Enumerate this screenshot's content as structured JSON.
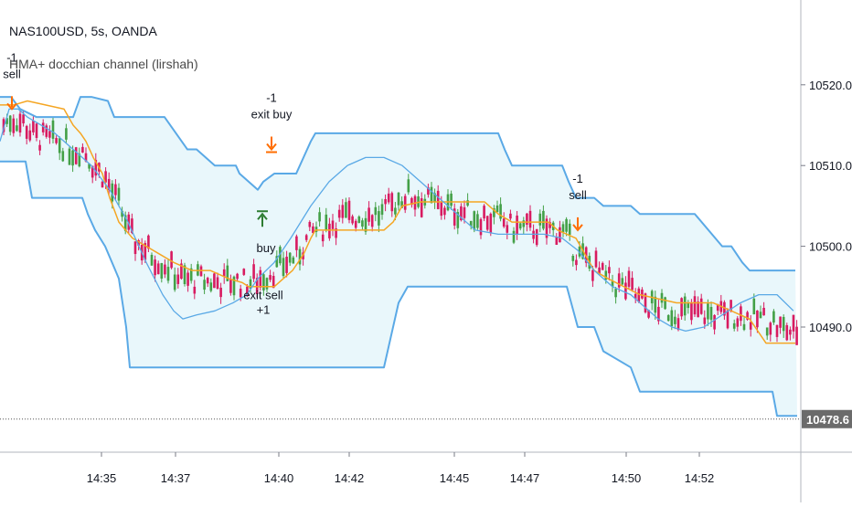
{
  "header": {
    "symbol_line": "NAS100USD, 5s, OANDA",
    "indicator_line": "HMA+ docchian channel (lirshah)"
  },
  "colors": {
    "channel_upper": "#5aa9e6",
    "channel_lower": "#5aa9e6",
    "channel_fill": "#e9f7fb",
    "hma_line": "#f5a623",
    "slow_ma_line": "#5aa9e6",
    "candle_up": "#43a047",
    "candle_down": "#d81b60",
    "sell_arrow": "#ff6d00",
    "buy_arrow": "#2e7d32",
    "last_price_tag": "#6b6b6b"
  },
  "chart_data": {
    "type": "line",
    "title": "NAS100USD, 5s, OANDA",
    "x_ticks": [
      "14:35",
      "14:37",
      "14:40",
      "14:42",
      "14:45",
      "14:47",
      "14:50",
      "14:52"
    ],
    "y_ticks": [
      10490.0,
      10500.0,
      10510.0,
      10520.0
    ],
    "y_range": [
      10474.5,
      10530.5
    ],
    "last_price": "10478.6",
    "series": [
      {
        "name": "",
        "role": "donchian-upper",
        "points": [
          [
            0,
            10518.5
          ],
          [
            12,
            10518.5
          ],
          [
            22,
            10517
          ],
          [
            40,
            10516
          ],
          [
            60,
            10516
          ],
          [
            80,
            10516
          ],
          [
            88,
            10518.5
          ],
          [
            100,
            10518.5
          ],
          [
            118,
            10518
          ],
          [
            125,
            10516
          ],
          [
            132,
            10516
          ],
          [
            150,
            10516
          ],
          [
            180,
            10516
          ],
          [
            205,
            10512
          ],
          [
            215,
            10512
          ],
          [
            235,
            10510
          ],
          [
            258,
            10510
          ],
          [
            262,
            10509
          ],
          [
            272,
            10508
          ],
          [
            282,
            10507
          ],
          [
            288,
            10508
          ],
          [
            300,
            10509
          ],
          [
            312,
            10509
          ],
          [
            318,
            10509
          ],
          [
            324,
            10509
          ],
          [
            332,
            10511
          ],
          [
            340,
            10513
          ],
          [
            345,
            10514
          ],
          [
            400,
            10514
          ],
          [
            440,
            10514
          ],
          [
            470,
            10514
          ],
          [
            500,
            10514
          ],
          [
            530,
            10514
          ],
          [
            545,
            10514
          ],
          [
            552,
            10512
          ],
          [
            560,
            10510
          ],
          [
            600,
            10510
          ],
          [
            615,
            10510
          ],
          [
            622,
            10508
          ],
          [
            630,
            10506
          ],
          [
            650,
            10506
          ],
          [
            660,
            10505
          ],
          [
            690,
            10505
          ],
          [
            700,
            10504
          ],
          [
            760,
            10504
          ],
          [
            790,
            10500
          ],
          [
            800,
            10500
          ],
          [
            812,
            10498
          ],
          [
            820,
            10497
          ],
          [
            870,
            10497
          ]
        ]
      },
      {
        "name": "",
        "role": "donchian-lower",
        "points": [
          [
            0,
            10510.5
          ],
          [
            28,
            10510.5
          ],
          [
            35,
            10506
          ],
          [
            60,
            10506
          ],
          [
            90,
            10506
          ],
          [
            96,
            10504
          ],
          [
            104,
            10502
          ],
          [
            115,
            10500
          ],
          [
            130,
            10496
          ],
          [
            138,
            10490
          ],
          [
            142,
            10485
          ],
          [
            200,
            10485
          ],
          [
            262,
            10485
          ],
          [
            290,
            10485
          ],
          [
            305,
            10485
          ],
          [
            310,
            10485
          ],
          [
            420,
            10485
          ],
          [
            428,
            10489
          ],
          [
            436,
            10493
          ],
          [
            446,
            10495
          ],
          [
            470,
            10495
          ],
          [
            560,
            10495
          ],
          [
            600,
            10495
          ],
          [
            620,
            10495
          ],
          [
            632,
            10490
          ],
          [
            650,
            10490
          ],
          [
            660,
            10487
          ],
          [
            690,
            10485
          ],
          [
            700,
            10482
          ],
          [
            780,
            10482
          ],
          [
            845,
            10482
          ],
          [
            850,
            10479
          ],
          [
            872,
            10479
          ]
        ]
      },
      {
        "name": "",
        "role": "hma",
        "points": [
          [
            0,
            10517.5
          ],
          [
            15,
            10517.5
          ],
          [
            30,
            10518
          ],
          [
            70,
            10517
          ],
          [
            80,
            10515
          ],
          [
            88,
            10514
          ],
          [
            94,
            10513
          ],
          [
            102,
            10511
          ],
          [
            112,
            10509
          ],
          [
            120,
            10506
          ],
          [
            130,
            10503
          ],
          [
            145,
            10501
          ],
          [
            160,
            10500
          ],
          [
            175,
            10499
          ],
          [
            190,
            10498
          ],
          [
            210,
            10497
          ],
          [
            230,
            10497
          ],
          [
            250,
            10496
          ],
          [
            265,
            10495.5
          ],
          [
            272,
            10495
          ],
          [
            280,
            10495
          ],
          [
            290,
            10495
          ],
          [
            300,
            10495
          ],
          [
            320,
            10497
          ],
          [
            332,
            10499
          ],
          [
            340,
            10501
          ],
          [
            345,
            10502
          ],
          [
            380,
            10502
          ],
          [
            420,
            10502
          ],
          [
            430,
            10503
          ],
          [
            440,
            10505
          ],
          [
            460,
            10505.5
          ],
          [
            530,
            10505.5
          ],
          [
            545,
            10504
          ],
          [
            560,
            10503
          ],
          [
            600,
            10503
          ],
          [
            610,
            10502
          ],
          [
            630,
            10501
          ],
          [
            650,
            10497
          ],
          [
            665,
            10496
          ],
          [
            700,
            10494
          ],
          [
            740,
            10493
          ],
          [
            780,
            10493
          ],
          [
            800,
            10492
          ],
          [
            820,
            10491
          ],
          [
            838,
            10488
          ],
          [
            870,
            10488
          ]
        ]
      },
      {
        "name": "",
        "role": "slow-ma",
        "points": [
          [
            0,
            10513
          ],
          [
            10,
            10517
          ],
          [
            20,
            10517
          ],
          [
            30,
            10516
          ],
          [
            60,
            10514
          ],
          [
            80,
            10512
          ],
          [
            100,
            10510
          ],
          [
            120,
            10507
          ],
          [
            140,
            10503
          ],
          [
            160,
            10498
          ],
          [
            178,
            10494
          ],
          [
            190,
            10492
          ],
          [
            200,
            10491
          ],
          [
            215,
            10491.5
          ],
          [
            235,
            10492
          ],
          [
            255,
            10493
          ],
          [
            270,
            10494
          ],
          [
            282,
            10496
          ],
          [
            300,
            10498
          ],
          [
            318,
            10501
          ],
          [
            340,
            10505
          ],
          [
            360,
            10508
          ],
          [
            380,
            10510
          ],
          [
            400,
            10511
          ],
          [
            420,
            10511
          ],
          [
            440,
            10510
          ],
          [
            460,
            10508
          ],
          [
            480,
            10506
          ],
          [
            500,
            10504
          ],
          [
            520,
            10502
          ],
          [
            545,
            10501.5
          ],
          [
            570,
            10501.5
          ],
          [
            595,
            10501.5
          ],
          [
            615,
            10501
          ],
          [
            632,
            10499.5
          ],
          [
            650,
            10497
          ],
          [
            670,
            10495
          ],
          [
            690,
            10494
          ],
          [
            705,
            10492.5
          ],
          [
            720,
            10491
          ],
          [
            735,
            10490
          ],
          [
            750,
            10489.5
          ],
          [
            770,
            10490
          ],
          [
            790,
            10491.5
          ],
          [
            810,
            10493
          ],
          [
            830,
            10494
          ],
          [
            850,
            10494
          ],
          [
            868,
            10492
          ]
        ]
      }
    ],
    "signals": [
      {
        "type": "sell",
        "label": "sell",
        "count": "-1",
        "x": 13,
        "y": 10517
      },
      {
        "type": "exit-buy",
        "label": "exit buy",
        "count": "-1",
        "x": 297,
        "y": 10512
      },
      {
        "type": "buy",
        "label": "buy",
        "count": "",
        "x": 287,
        "y": 10504
      },
      {
        "type": "exit-sell",
        "label": "exit sell",
        "count": "+1",
        "x": 288,
        "y": 10500
      },
      {
        "type": "sell",
        "label": "sell",
        "count": "-1",
        "x": 632,
        "y": 10502
      }
    ]
  }
}
